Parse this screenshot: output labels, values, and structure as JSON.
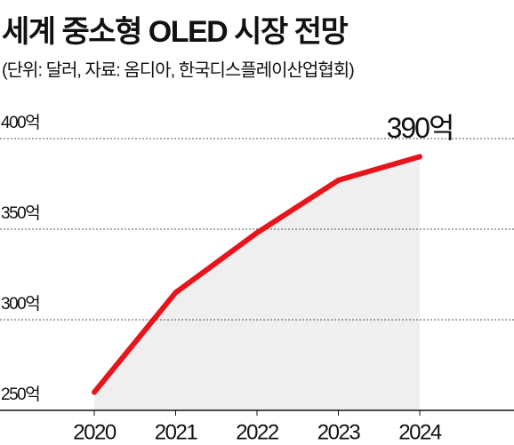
{
  "chart_data": {
    "type": "line",
    "title": "세계 중소형 OLED 시장 전망",
    "subtitle": "(단위: 달러, 자료: 옴디아, 한국디스플레이산업협회)",
    "categories": [
      "2020",
      "2021",
      "2022",
      "2023",
      "2024"
    ],
    "values": [
      260,
      315,
      348,
      377,
      390
    ],
    "value_labels": [
      null,
      null,
      null,
      null,
      "390억"
    ],
    "color": "#e8141b",
    "area_color": "#efefef",
    "ylim": [
      250,
      400
    ],
    "yticks": [
      {
        "value": 250,
        "label": "250억"
      },
      {
        "value": 300,
        "label": "300억"
      },
      {
        "value": 350,
        "label": "350억"
      },
      {
        "value": 400,
        "label": "400억"
      }
    ],
    "grid": true
  }
}
